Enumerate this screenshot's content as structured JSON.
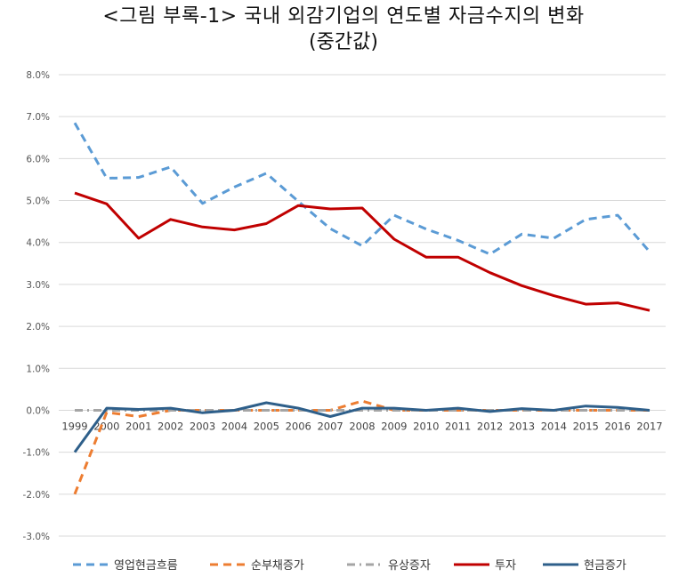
{
  "title": "<그림 부록-1> 국내 외감기업의 연도별 자금수지의 변화",
  "subtitle": "(중간값)",
  "chart_data": {
    "type": "line",
    "x": [
      "1999",
      "2000",
      "2001",
      "2002",
      "2003",
      "2004",
      "2005",
      "2006",
      "2007",
      "2008",
      "2009",
      "2010",
      "2011",
      "2012",
      "2013",
      "2014",
      "2015",
      "2016",
      "2017"
    ],
    "ylim": [
      -3.0,
      8.0
    ],
    "yticks": [
      "8.0%",
      "7.0%",
      "6.0%",
      "5.0%",
      "4.0%",
      "3.0%",
      "2.0%",
      "1.0%",
      "0.0%",
      "-1.0%",
      "-2.0%",
      "-3.0%"
    ],
    "ytick_values": [
      8,
      7,
      6,
      5,
      4,
      3,
      2,
      1,
      0,
      -1,
      -2,
      -3
    ],
    "grid": true,
    "legend_position": "bottom",
    "series": [
      {
        "name": "영업현금흐름",
        "color": "#5b9bd5",
        "style": "dashed",
        "values": [
          6.85,
          5.53,
          5.55,
          5.8,
          4.93,
          5.32,
          5.65,
          4.98,
          4.33,
          3.92,
          4.65,
          4.32,
          4.05,
          3.72,
          4.2,
          4.1,
          4.55,
          4.65,
          3.78
        ]
      },
      {
        "name": "순부채증가",
        "color": "#ed7d31",
        "style": "dashed",
        "values": [
          -2.0,
          -0.05,
          -0.15,
          0.0,
          0.0,
          0.0,
          0.0,
          0.0,
          0.0,
          0.22,
          0.0,
          0.0,
          0.0,
          0.0,
          0.0,
          0.0,
          0.0,
          0.0,
          0.0
        ]
      },
      {
        "name": "유상증자",
        "color": "#a5a5a5",
        "style": "dashdot",
        "values": [
          0,
          0,
          0,
          0,
          0,
          0,
          0,
          0,
          0,
          0,
          0,
          0,
          0,
          0,
          0,
          0,
          0,
          0,
          0
        ]
      },
      {
        "name": "투자",
        "color": "#c00000",
        "style": "solid",
        "values": [
          5.18,
          4.92,
          4.1,
          4.55,
          4.37,
          4.3,
          4.45,
          4.88,
          4.8,
          4.82,
          4.08,
          3.65,
          3.65,
          3.28,
          2.97,
          2.73,
          2.53,
          2.56,
          2.38
        ]
      },
      {
        "name": "현금증가",
        "color": "#2e5f8a",
        "style": "solid",
        "values": [
          -1.0,
          0.05,
          0.02,
          0.05,
          -0.06,
          0.0,
          0.18,
          0.05,
          -0.15,
          0.05,
          0.05,
          0.0,
          0.05,
          -0.03,
          0.04,
          0.0,
          0.1,
          0.07,
          0.0
        ]
      }
    ]
  }
}
